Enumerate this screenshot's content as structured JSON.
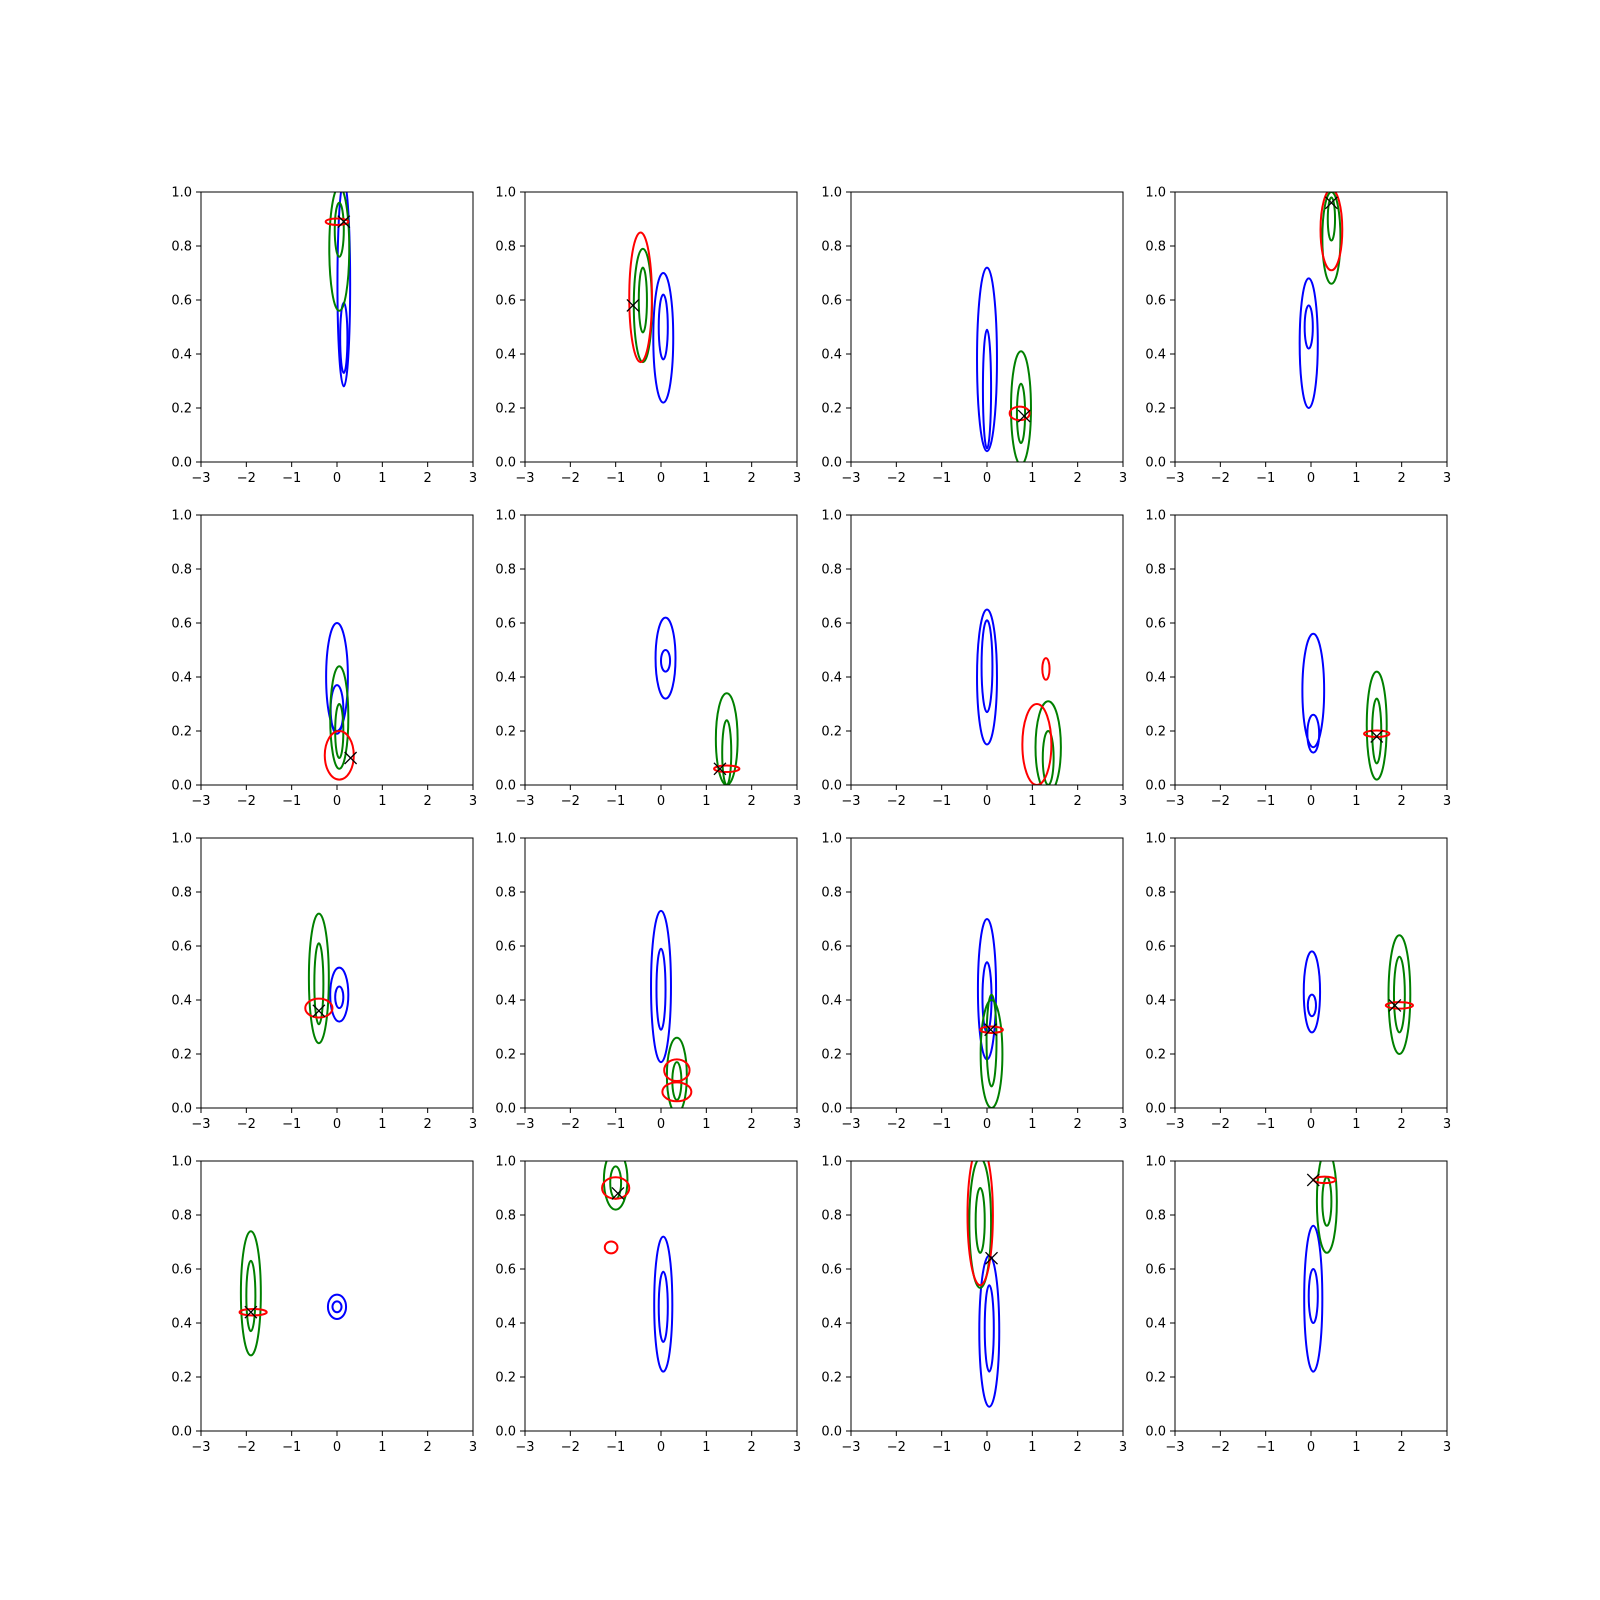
{
  "colors": {
    "blue": "#0000ff",
    "green": "#008000",
    "red": "#ff0000",
    "marker": "#000000"
  },
  "chart_data": [
    {
      "type": "contour",
      "xlim": [
        -3,
        3
      ],
      "ylim": [
        0,
        1
      ],
      "xticks": [
        "−3",
        "−2",
        "−1",
        "0",
        "1",
        "2",
        "3"
      ],
      "yticks": [
        "0.0",
        "0.2",
        "0.4",
        "0.6",
        "0.8",
        "1.0"
      ],
      "contours": [
        {
          "color": "blue",
          "cx": 0.15,
          "cy": 0.66,
          "rx": 0.14,
          "ry": 0.38
        },
        {
          "color": "blue",
          "cx": 0.15,
          "cy": 0.46,
          "rx": 0.08,
          "ry": 0.13
        },
        {
          "color": "green",
          "cx": 0.05,
          "cy": 0.79,
          "rx": 0.22,
          "ry": 0.23
        },
        {
          "color": "green",
          "cx": 0.05,
          "cy": 0.86,
          "rx": 0.1,
          "ry": 0.1
        },
        {
          "color": "red",
          "cx": 0.0,
          "cy": 0.89,
          "rx": 0.25,
          "ry": 0.012
        }
      ],
      "marker": {
        "x": 0.15,
        "y": 0.89
      }
    },
    {
      "type": "contour",
      "xlim": [
        -3,
        3
      ],
      "ylim": [
        0,
        1
      ],
      "xticks": [
        "−3",
        "−2",
        "−1",
        "0",
        "1",
        "2",
        "3"
      ],
      "yticks": [
        "0.0",
        "0.2",
        "0.4",
        "0.6",
        "0.8",
        "1.0"
      ],
      "contours": [
        {
          "color": "blue",
          "cx": 0.05,
          "cy": 0.46,
          "rx": 0.22,
          "ry": 0.24
        },
        {
          "color": "blue",
          "cx": 0.05,
          "cy": 0.5,
          "rx": 0.1,
          "ry": 0.12
        },
        {
          "color": "green",
          "cx": -0.4,
          "cy": 0.58,
          "rx": 0.2,
          "ry": 0.21
        },
        {
          "color": "green",
          "cx": -0.4,
          "cy": 0.6,
          "rx": 0.09,
          "ry": 0.12
        },
        {
          "color": "red",
          "cx": -0.45,
          "cy": 0.61,
          "rx": 0.25,
          "ry": 0.24
        }
      ],
      "marker": {
        "x": -0.62,
        "y": 0.58
      }
    },
    {
      "type": "contour",
      "xlim": [
        -3,
        3
      ],
      "ylim": [
        0,
        1
      ],
      "xticks": [
        "−3",
        "−2",
        "−1",
        "0",
        "1",
        "2",
        "3"
      ],
      "yticks": [
        "0.0",
        "0.2",
        "0.4",
        "0.6",
        "0.8",
        "1.0"
      ],
      "contours": [
        {
          "color": "blue",
          "cx": 0.0,
          "cy": 0.38,
          "rx": 0.22,
          "ry": 0.34
        },
        {
          "color": "blue",
          "cx": 0.0,
          "cy": 0.27,
          "rx": 0.09,
          "ry": 0.22
        },
        {
          "color": "green",
          "cx": 0.75,
          "cy": 0.2,
          "rx": 0.22,
          "ry": 0.21
        },
        {
          "color": "green",
          "cx": 0.75,
          "cy": 0.18,
          "rx": 0.09,
          "ry": 0.11
        },
        {
          "color": "red",
          "cx": 0.72,
          "cy": 0.18,
          "rx": 0.22,
          "ry": 0.025
        }
      ],
      "marker": {
        "x": 0.82,
        "y": 0.17
      }
    },
    {
      "type": "contour",
      "xlim": [
        -3,
        3
      ],
      "ylim": [
        0,
        1
      ],
      "xticks": [
        "−3",
        "−2",
        "−1",
        "0",
        "1",
        "2",
        "3"
      ],
      "yticks": [
        "0.0",
        "0.2",
        "0.4",
        "0.6",
        "0.8",
        "1.0"
      ],
      "contours": [
        {
          "color": "blue",
          "cx": -0.05,
          "cy": 0.44,
          "rx": 0.2,
          "ry": 0.24
        },
        {
          "color": "blue",
          "cx": -0.05,
          "cy": 0.5,
          "rx": 0.09,
          "ry": 0.08
        },
        {
          "color": "green",
          "cx": 0.45,
          "cy": 0.83,
          "rx": 0.2,
          "ry": 0.17
        },
        {
          "color": "green",
          "cx": 0.45,
          "cy": 0.9,
          "rx": 0.08,
          "ry": 0.08
        },
        {
          "color": "red",
          "cx": 0.45,
          "cy": 0.86,
          "rx": 0.24,
          "ry": 0.15
        }
      ],
      "marker": {
        "x": 0.45,
        "y": 0.96
      }
    },
    {
      "type": "contour",
      "xlim": [
        -3,
        3
      ],
      "ylim": [
        0,
        1
      ],
      "xticks": [
        "−3",
        "−2",
        "−1",
        "0",
        "1",
        "2",
        "3"
      ],
      "yticks": [
        "0.0",
        "0.2",
        "0.4",
        "0.6",
        "0.8",
        "1.0"
      ],
      "contours": [
        {
          "color": "blue",
          "cx": 0.0,
          "cy": 0.4,
          "rx": 0.24,
          "ry": 0.2
        },
        {
          "color": "blue",
          "cx": 0.0,
          "cy": 0.28,
          "rx": 0.14,
          "ry": 0.09
        },
        {
          "color": "green",
          "cx": 0.05,
          "cy": 0.25,
          "rx": 0.2,
          "ry": 0.19
        },
        {
          "color": "green",
          "cx": 0.05,
          "cy": 0.2,
          "rx": 0.09,
          "ry": 0.1
        },
        {
          "color": "red",
          "cx": 0.05,
          "cy": 0.11,
          "rx": 0.32,
          "ry": 0.09
        }
      ],
      "marker": {
        "x": 0.3,
        "y": 0.1
      }
    },
    {
      "type": "contour",
      "xlim": [
        -3,
        3
      ],
      "ylim": [
        0,
        1
      ],
      "xticks": [
        "−3",
        "−2",
        "−1",
        "0",
        "1",
        "2",
        "3"
      ],
      "yticks": [
        "0.0",
        "0.2",
        "0.4",
        "0.6",
        "0.8",
        "1.0"
      ],
      "contours": [
        {
          "color": "blue",
          "cx": 0.1,
          "cy": 0.47,
          "rx": 0.22,
          "ry": 0.15
        },
        {
          "color": "blue",
          "cx": 0.1,
          "cy": 0.46,
          "rx": 0.1,
          "ry": 0.04
        },
        {
          "color": "green",
          "cx": 1.45,
          "cy": 0.17,
          "rx": 0.24,
          "ry": 0.17
        },
        {
          "color": "green",
          "cx": 1.45,
          "cy": 0.12,
          "rx": 0.1,
          "ry": 0.12
        },
        {
          "color": "red",
          "cx": 1.45,
          "cy": 0.06,
          "rx": 0.28,
          "ry": 0.012
        }
      ],
      "marker": {
        "x": 1.3,
        "y": 0.06
      }
    },
    {
      "type": "contour",
      "xlim": [
        -3,
        3
      ],
      "ylim": [
        0,
        1
      ],
      "xticks": [
        "−3",
        "−2",
        "−1",
        "0",
        "1",
        "2",
        "3"
      ],
      "yticks": [
        "0.0",
        "0.2",
        "0.4",
        "0.6",
        "0.8",
        "1.0"
      ],
      "contours": [
        {
          "color": "blue",
          "cx": 0.0,
          "cy": 0.4,
          "rx": 0.22,
          "ry": 0.25
        },
        {
          "color": "blue",
          "cx": 0.0,
          "cy": 0.44,
          "rx": 0.12,
          "ry": 0.17
        },
        {
          "color": "green",
          "cx": 1.35,
          "cy": 0.14,
          "rx": 0.28,
          "ry": 0.17
        },
        {
          "color": "green",
          "cx": 1.35,
          "cy": 0.1,
          "rx": 0.12,
          "ry": 0.1
        },
        {
          "color": "red",
          "cx": 1.1,
          "cy": 0.15,
          "rx": 0.32,
          "ry": 0.15
        },
        {
          "color": "red",
          "cx": 1.3,
          "cy": 0.43,
          "rx": 0.08,
          "ry": 0.04
        }
      ],
      "marker": null
    },
    {
      "type": "contour",
      "xlim": [
        -3,
        3
      ],
      "ylim": [
        0,
        1
      ],
      "xticks": [
        "−3",
        "−2",
        "−1",
        "0",
        "1",
        "2",
        "3"
      ],
      "yticks": [
        "0.0",
        "0.2",
        "0.4",
        "0.6",
        "0.8",
        "1.0"
      ],
      "contours": [
        {
          "color": "blue",
          "cx": 0.05,
          "cy": 0.35,
          "rx": 0.24,
          "ry": 0.21
        },
        {
          "color": "blue",
          "cx": 0.05,
          "cy": 0.19,
          "rx": 0.13,
          "ry": 0.07
        },
        {
          "color": "green",
          "cx": 1.45,
          "cy": 0.22,
          "rx": 0.22,
          "ry": 0.2
        },
        {
          "color": "green",
          "cx": 1.45,
          "cy": 0.2,
          "rx": 0.1,
          "ry": 0.12
        },
        {
          "color": "red",
          "cx": 1.45,
          "cy": 0.19,
          "rx": 0.28,
          "ry": 0.012
        }
      ],
      "marker": {
        "x": 1.45,
        "y": 0.18
      }
    },
    {
      "type": "contour",
      "xlim": [
        -3,
        3
      ],
      "ylim": [
        0,
        1
      ],
      "xticks": [
        "−3",
        "−2",
        "−1",
        "0",
        "1",
        "2",
        "3"
      ],
      "yticks": [
        "0.0",
        "0.2",
        "0.4",
        "0.6",
        "0.8",
        "1.0"
      ],
      "contours": [
        {
          "color": "blue",
          "cx": 0.05,
          "cy": 0.42,
          "rx": 0.2,
          "ry": 0.1
        },
        {
          "color": "blue",
          "cx": 0.05,
          "cy": 0.41,
          "rx": 0.09,
          "ry": 0.04
        },
        {
          "color": "green",
          "cx": -0.4,
          "cy": 0.48,
          "rx": 0.22,
          "ry": 0.24
        },
        {
          "color": "green",
          "cx": -0.4,
          "cy": 0.46,
          "rx": 0.1,
          "ry": 0.15
        },
        {
          "color": "red",
          "cx": -0.4,
          "cy": 0.37,
          "rx": 0.3,
          "ry": 0.035
        }
      ],
      "marker": {
        "x": -0.4,
        "y": 0.36
      }
    },
    {
      "type": "contour",
      "xlim": [
        -3,
        3
      ],
      "ylim": [
        0,
        1
      ],
      "xticks": [
        "−3",
        "−2",
        "−1",
        "0",
        "1",
        "2",
        "3"
      ],
      "yticks": [
        "0.0",
        "0.2",
        "0.4",
        "0.6",
        "0.8",
        "1.0"
      ],
      "contours": [
        {
          "color": "blue",
          "cx": 0.0,
          "cy": 0.45,
          "rx": 0.22,
          "ry": 0.28
        },
        {
          "color": "blue",
          "cx": 0.0,
          "cy": 0.44,
          "rx": 0.1,
          "ry": 0.15
        },
        {
          "color": "green",
          "cx": 0.35,
          "cy": 0.12,
          "rx": 0.22,
          "ry": 0.14
        },
        {
          "color": "green",
          "cx": 0.35,
          "cy": 0.1,
          "rx": 0.1,
          "ry": 0.07
        },
        {
          "color": "red",
          "cx": 0.35,
          "cy": 0.14,
          "rx": 0.28,
          "ry": 0.04
        },
        {
          "color": "red",
          "cx": 0.35,
          "cy": 0.06,
          "rx": 0.32,
          "ry": 0.035
        }
      ],
      "marker": null
    },
    {
      "type": "contour",
      "xlim": [
        -3,
        3
      ],
      "ylim": [
        0,
        1
      ],
      "xticks": [
        "−3",
        "−2",
        "−1",
        "0",
        "1",
        "2",
        "3"
      ],
      "yticks": [
        "0.0",
        "0.2",
        "0.4",
        "0.6",
        "0.8",
        "1.0"
      ],
      "contours": [
        {
          "color": "blue",
          "cx": 0.0,
          "cy": 0.44,
          "rx": 0.2,
          "ry": 0.26
        },
        {
          "color": "blue",
          "cx": 0.0,
          "cy": 0.41,
          "rx": 0.1,
          "ry": 0.13
        },
        {
          "color": "green",
          "cx": 0.1,
          "cy": 0.2,
          "rx": 0.24,
          "ry": 0.2
        },
        {
          "color": "green",
          "cx": 0.1,
          "cy": 0.25,
          "rx": 0.11,
          "ry": 0.17
        },
        {
          "color": "red",
          "cx": 0.1,
          "cy": 0.29,
          "rx": 0.25,
          "ry": 0.012
        }
      ],
      "marker": {
        "x": 0.08,
        "y": 0.29
      }
    },
    {
      "type": "contour",
      "xlim": [
        -3,
        3
      ],
      "ylim": [
        0,
        1
      ],
      "xticks": [
        "−3",
        "−2",
        "−1",
        "0",
        "1",
        "2",
        "3"
      ],
      "yticks": [
        "0.0",
        "0.2",
        "0.4",
        "0.6",
        "0.8",
        "1.0"
      ],
      "contours": [
        {
          "color": "blue",
          "cx": 0.02,
          "cy": 0.43,
          "rx": 0.18,
          "ry": 0.15
        },
        {
          "color": "blue",
          "cx": 0.02,
          "cy": 0.38,
          "rx": 0.09,
          "ry": 0.04
        },
        {
          "color": "green",
          "cx": 1.95,
          "cy": 0.42,
          "rx": 0.24,
          "ry": 0.22
        },
        {
          "color": "green",
          "cx": 1.95,
          "cy": 0.42,
          "rx": 0.12,
          "ry": 0.14
        },
        {
          "color": "red",
          "cx": 1.95,
          "cy": 0.38,
          "rx": 0.3,
          "ry": 0.012
        }
      ],
      "marker": {
        "x": 1.85,
        "y": 0.38
      }
    },
    {
      "type": "contour",
      "xlim": [
        -3,
        3
      ],
      "ylim": [
        0,
        1
      ],
      "xticks": [
        "−3",
        "−2",
        "−1",
        "0",
        "1",
        "2",
        "3"
      ],
      "yticks": [
        "0.0",
        "0.2",
        "0.4",
        "0.6",
        "0.8",
        "1.0"
      ],
      "contours": [
        {
          "color": "blue",
          "cx": 0.0,
          "cy": 0.46,
          "rx": 0.2,
          "ry": 0.045
        },
        {
          "color": "blue",
          "cx": 0.0,
          "cy": 0.46,
          "rx": 0.1,
          "ry": 0.02
        },
        {
          "color": "green",
          "cx": -1.9,
          "cy": 0.51,
          "rx": 0.22,
          "ry": 0.23
        },
        {
          "color": "green",
          "cx": -1.9,
          "cy": 0.5,
          "rx": 0.1,
          "ry": 0.13
        },
        {
          "color": "red",
          "cx": -1.85,
          "cy": 0.44,
          "rx": 0.3,
          "ry": 0.012
        }
      ],
      "marker": {
        "x": -1.9,
        "y": 0.44
      }
    },
    {
      "type": "contour",
      "xlim": [
        -3,
        3
      ],
      "ylim": [
        0,
        1
      ],
      "xticks": [
        "−3",
        "−2",
        "−1",
        "0",
        "1",
        "2",
        "3"
      ],
      "yticks": [
        "0.0",
        "0.2",
        "0.4",
        "0.6",
        "0.8",
        "1.0"
      ],
      "contours": [
        {
          "color": "blue",
          "cx": 0.05,
          "cy": 0.47,
          "rx": 0.2,
          "ry": 0.25
        },
        {
          "color": "blue",
          "cx": 0.05,
          "cy": 0.46,
          "rx": 0.1,
          "ry": 0.13
        },
        {
          "color": "green",
          "cx": -1.0,
          "cy": 0.93,
          "rx": 0.26,
          "ry": 0.11
        },
        {
          "color": "green",
          "cx": -1.0,
          "cy": 0.92,
          "rx": 0.12,
          "ry": 0.06
        },
        {
          "color": "red",
          "cx": -1.0,
          "cy": 0.9,
          "rx": 0.3,
          "ry": 0.04
        },
        {
          "color": "red",
          "cx": -1.1,
          "cy": 0.68,
          "rx": 0.14,
          "ry": 0.022
        }
      ],
      "marker": {
        "x": -0.95,
        "y": 0.88
      }
    },
    {
      "type": "contour",
      "xlim": [
        -3,
        3
      ],
      "ylim": [
        0,
        1
      ],
      "xticks": [
        "−3",
        "−2",
        "−1",
        "0",
        "1",
        "2",
        "3"
      ],
      "yticks": [
        "0.0",
        "0.2",
        "0.4",
        "0.6",
        "0.8",
        "1.0"
      ],
      "contours": [
        {
          "color": "blue",
          "cx": 0.05,
          "cy": 0.37,
          "rx": 0.22,
          "ry": 0.28
        },
        {
          "color": "blue",
          "cx": 0.05,
          "cy": 0.38,
          "rx": 0.1,
          "ry": 0.16
        },
        {
          "color": "green",
          "cx": -0.15,
          "cy": 0.77,
          "rx": 0.24,
          "ry": 0.24
        },
        {
          "color": "green",
          "cx": -0.15,
          "cy": 0.78,
          "rx": 0.1,
          "ry": 0.12
        },
        {
          "color": "red",
          "cx": -0.15,
          "cy": 0.8,
          "rx": 0.28,
          "ry": 0.26
        }
      ],
      "marker": {
        "x": 0.1,
        "y": 0.64
      }
    },
    {
      "type": "contour",
      "xlim": [
        -3,
        3
      ],
      "ylim": [
        0,
        1
      ],
      "xticks": [
        "−3",
        "−2",
        "−1",
        "0",
        "1",
        "2",
        "3"
      ],
      "yticks": [
        "0.0",
        "0.2",
        "0.4",
        "0.6",
        "0.8",
        "1.0"
      ],
      "contours": [
        {
          "color": "blue",
          "cx": 0.05,
          "cy": 0.49,
          "rx": 0.2,
          "ry": 0.27
        },
        {
          "color": "blue",
          "cx": 0.05,
          "cy": 0.5,
          "rx": 0.1,
          "ry": 0.1
        },
        {
          "color": "green",
          "cx": 0.35,
          "cy": 0.85,
          "rx": 0.22,
          "ry": 0.19
        },
        {
          "color": "green",
          "cx": 0.35,
          "cy": 0.85,
          "rx": 0.1,
          "ry": 0.09
        },
        {
          "color": "red",
          "cx": 0.3,
          "cy": 0.93,
          "rx": 0.24,
          "ry": 0.012
        }
      ],
      "marker": {
        "x": 0.05,
        "y": 0.93
      }
    }
  ]
}
